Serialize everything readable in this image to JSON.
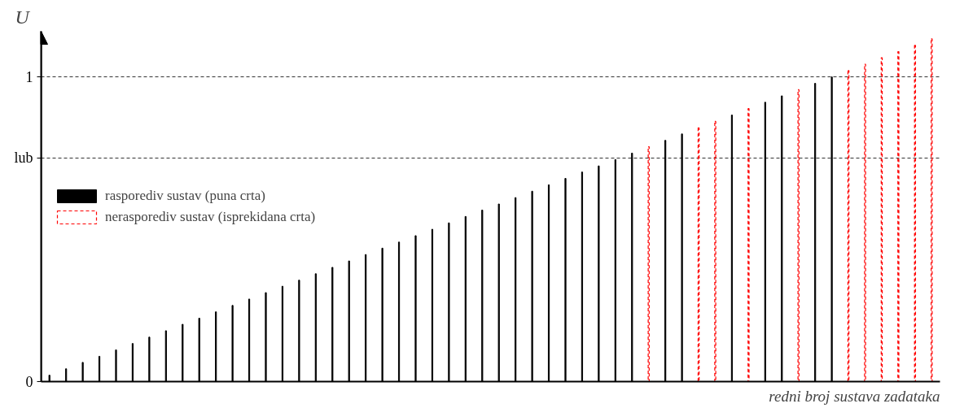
{
  "chart_data": {
    "type": "bar",
    "ylabel": "U",
    "xlabel": "redni broj sustava zadataka",
    "categories": [
      null,
      null,
      null,
      null,
      null,
      null,
      null,
      null,
      null,
      null,
      null,
      null,
      null,
      null,
      null,
      null,
      null,
      null,
      null,
      null,
      null,
      null,
      null,
      null,
      null,
      null,
      null,
      null,
      null,
      null,
      null,
      null,
      null,
      null,
      null,
      null,
      null,
      null,
      null,
      null,
      null,
      null,
      null,
      null,
      null,
      null,
      null,
      null,
      null,
      null,
      null,
      null,
      null,
      null
    ],
    "series": [
      {
        "name": "rasporediv sustav (puna crta)",
        "color": "#000000",
        "line_style": "solid",
        "values": [
          0.021,
          0.042,
          0.063,
          0.083,
          0.104,
          0.125,
          0.146,
          0.167,
          0.188,
          0.208,
          0.229,
          0.25,
          0.271,
          0.292,
          0.313,
          0.333,
          0.354,
          0.375,
          0.396,
          0.417,
          0.438,
          0.458,
          0.479,
          0.5,
          0.521,
          0.542,
          0.563,
          0.583,
          0.604,
          0.625,
          0.646,
          0.667,
          0.688,
          0.708,
          0.729,
          0.75,
          null,
          0.792,
          0.813,
          null,
          null,
          0.875,
          null,
          0.917,
          0.938,
          null,
          0.979,
          1.0,
          null,
          null,
          null,
          null,
          null,
          null
        ]
      },
      {
        "name": "nerasporediv sustav (isprekidana crta)",
        "color": "#ff0000",
        "line_style": "dashed",
        "values": [
          null,
          null,
          null,
          null,
          null,
          null,
          null,
          null,
          null,
          null,
          null,
          null,
          null,
          null,
          null,
          null,
          null,
          null,
          null,
          null,
          null,
          null,
          null,
          null,
          null,
          null,
          null,
          null,
          null,
          null,
          null,
          null,
          null,
          null,
          null,
          null,
          0.771,
          null,
          null,
          0.833,
          0.854,
          null,
          0.896,
          null,
          null,
          0.958,
          null,
          null,
          1.021,
          1.042,
          1.063,
          1.083,
          1.104,
          1.125
        ]
      }
    ],
    "ylim": [
      0,
      1.15
    ],
    "yticks": [
      0,
      {
        "value": 0.734,
        "label": "lub"
      },
      1
    ],
    "grid": "y",
    "legend": "left"
  }
}
